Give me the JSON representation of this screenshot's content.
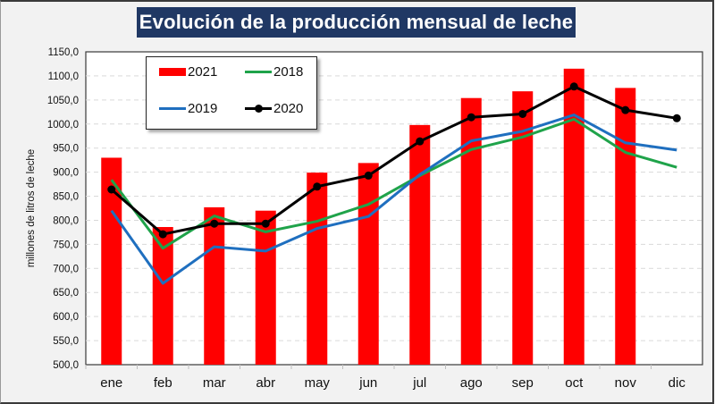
{
  "chart_data": {
    "type": "bar+line",
    "title": "Evolución de la producción mensual de leche",
    "xlabel": "",
    "ylabel": "millones de litros de leche",
    "ylim": [
      500,
      1150
    ],
    "ytick_step": 50,
    "yticks": [
      "500,0",
      "550,0",
      "600,0",
      "650,0",
      "700,0",
      "750,0",
      "800,0",
      "850,0",
      "900,0",
      "950,0",
      "1000,0",
      "1050,0",
      "1100,0",
      "1150,0"
    ],
    "grid": true,
    "legend_position": "top-left",
    "categories": [
      "ene",
      "feb",
      "mar",
      "abr",
      "may",
      "jun",
      "jul",
      "ago",
      "sep",
      "oct",
      "nov",
      "dic"
    ],
    "series": [
      {
        "name": "2021",
        "kind": "bar",
        "color": "#ff0000",
        "values": [
          930,
          786,
          827,
          820,
          899,
          919,
          998,
          1054,
          1068,
          1115,
          1075,
          null
        ]
      },
      {
        "name": "2018",
        "kind": "line",
        "color": "#1fa34a",
        "markers": false,
        "values": [
          884,
          742,
          809,
          776,
          798,
          833,
          893,
          947,
          973,
          1010,
          941,
          910
        ]
      },
      {
        "name": "2019",
        "kind": "line",
        "color": "#1f6fbf",
        "markers": false,
        "values": [
          820,
          669,
          745,
          736,
          783,
          808,
          895,
          965,
          985,
          1019,
          961,
          946
        ]
      },
      {
        "name": "2020",
        "kind": "line",
        "color": "#000000",
        "markers": true,
        "values": [
          864,
          771,
          793,
          793,
          870,
          893,
          964,
          1014,
          1021,
          1078,
          1029,
          1012
        ]
      }
    ]
  },
  "legend": {
    "items": [
      {
        "label": "2021"
      },
      {
        "label": "2018"
      },
      {
        "label": "2019"
      },
      {
        "label": "2020"
      }
    ]
  }
}
